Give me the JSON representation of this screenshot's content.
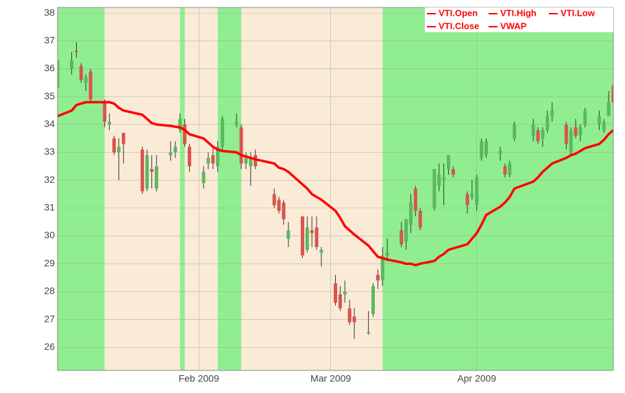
{
  "chart_data": {
    "type": "candlestick",
    "x": [
      "2009-01-02",
      "2009-01-05",
      "2009-01-06",
      "2009-01-07",
      "2009-01-08",
      "2009-01-09",
      "2009-01-12",
      "2009-01-13",
      "2009-01-14",
      "2009-01-15",
      "2009-01-16",
      "2009-01-20",
      "2009-01-21",
      "2009-01-22",
      "2009-01-23",
      "2009-01-26",
      "2009-01-27",
      "2009-01-28",
      "2009-01-29",
      "2009-01-30",
      "2009-02-02",
      "2009-02-03",
      "2009-02-04",
      "2009-02-05",
      "2009-02-06",
      "2009-02-09",
      "2009-02-10",
      "2009-02-11",
      "2009-02-12",
      "2009-02-13",
      "2009-02-17",
      "2009-02-18",
      "2009-02-19",
      "2009-02-20",
      "2009-02-23",
      "2009-02-24",
      "2009-02-25",
      "2009-02-26",
      "2009-02-27",
      "2009-03-02",
      "2009-03-03",
      "2009-03-04",
      "2009-03-05",
      "2009-03-06",
      "2009-03-09",
      "2009-03-10",
      "2009-03-11",
      "2009-03-12",
      "2009-03-13",
      "2009-03-16",
      "2009-03-17",
      "2009-03-18",
      "2009-03-19",
      "2009-03-20",
      "2009-03-23",
      "2009-03-24",
      "2009-03-25",
      "2009-03-26",
      "2009-03-27",
      "2009-03-30",
      "2009-03-31",
      "2009-04-01",
      "2009-04-02",
      "2009-04-03",
      "2009-04-06",
      "2009-04-07",
      "2009-04-08",
      "2009-04-09",
      "2009-04-13",
      "2009-04-14",
      "2009-04-15",
      "2009-04-16",
      "2009-04-17",
      "2009-04-20",
      "2009-04-21",
      "2009-04-22",
      "2009-04-23",
      "2009-04-24",
      "2009-04-27",
      "2009-04-28",
      "2009-04-29",
      "2009-04-30"
    ],
    "series": [
      {
        "name": "VTI.Open",
        "color": "#ff0000",
        "values": [
          35.3,
          36.0,
          36.65,
          36.1,
          35.5,
          35.9,
          34.8,
          34.0,
          33.5,
          33.0,
          33.7,
          33.1,
          31.7,
          32.4,
          31.7,
          32.9,
          33.0,
          33.8,
          34.0,
          33.2,
          31.9,
          32.6,
          32.9,
          32.5,
          33.2,
          34.0,
          33.9,
          32.6,
          32.5,
          32.9,
          31.5,
          31.3,
          31.2,
          29.9,
          30.7,
          29.5,
          30.2,
          30.3,
          29.4,
          28.3,
          27.9,
          27.9,
          27.4,
          27.1,
          26.5,
          27.2,
          28.6,
          28.4,
          29.3,
          30.2,
          29.8,
          30.4,
          31.7,
          30.9,
          31.0,
          31.8,
          32.0,
          32.4,
          32.4,
          31.5,
          31.4,
          31.1,
          32.8,
          32.9,
          32.95,
          32.5,
          32.2,
          33.5,
          33.6,
          33.8,
          33.5,
          33.8,
          34.3,
          34.0,
          33.0,
          33.9,
          33.6,
          34.0,
          34.0,
          33.8,
          34.3,
          35.4
        ]
      },
      {
        "name": "VTI.High",
        "color": "#ff0000",
        "values": [
          36.5,
          36.6,
          36.95,
          36.2,
          35.8,
          36.0,
          34.9,
          34.4,
          33.6,
          33.5,
          33.7,
          33.2,
          33.1,
          32.9,
          32.9,
          33.4,
          33.4,
          34.4,
          34.2,
          33.3,
          32.5,
          33.0,
          33.2,
          33.4,
          34.3,
          34.4,
          34.0,
          33.0,
          33.0,
          33.1,
          31.7,
          31.4,
          31.3,
          30.5,
          30.7,
          30.7,
          30.7,
          30.7,
          29.6,
          28.6,
          28.2,
          28.4,
          27.7,
          27.4,
          27.3,
          28.3,
          28.8,
          29.6,
          29.9,
          30.5,
          30.6,
          31.5,
          31.8,
          31.0,
          32.4,
          32.6,
          32.6,
          32.9,
          32.5,
          31.6,
          32.0,
          32.2,
          33.5,
          33.5,
          33.2,
          32.6,
          32.7,
          34.1,
          34.2,
          33.9,
          33.9,
          34.5,
          34.8,
          34.1,
          33.9,
          34.2,
          34.0,
          34.6,
          34.5,
          34.2,
          35.2,
          35.6
        ]
      },
      {
        "name": "VTI.Low",
        "color": "#ff0000",
        "values": [
          35.1,
          35.8,
          36.4,
          35.5,
          35.2,
          34.8,
          33.9,
          33.8,
          32.9,
          32.0,
          32.6,
          31.5,
          31.6,
          31.7,
          31.6,
          32.7,
          32.8,
          33.7,
          33.2,
          32.3,
          31.7,
          32.4,
          32.4,
          32.3,
          33.1,
          33.9,
          32.4,
          32.4,
          31.8,
          32.4,
          31.0,
          30.8,
          30.4,
          29.6,
          29.2,
          29.4,
          29.6,
          29.5,
          28.9,
          27.5,
          27.3,
          27.6,
          26.8,
          26.3,
          26.45,
          27.1,
          28.1,
          28.2,
          29.1,
          29.6,
          29.5,
          30.1,
          30.7,
          30.2,
          30.9,
          31.6,
          31.1,
          32.2,
          32.1,
          30.8,
          31.3,
          30.9,
          32.7,
          32.8,
          32.7,
          32.1,
          32.1,
          33.4,
          33.4,
          33.3,
          33.2,
          33.7,
          34.1,
          33.1,
          32.9,
          33.5,
          33.4,
          33.9,
          33.8,
          33.7,
          34.3,
          34.7
        ]
      },
      {
        "name": "VTI.Close",
        "color": "#ff0000",
        "values": [
          36.3,
          36.3,
          36.6,
          35.6,
          35.7,
          34.9,
          34.1,
          34.1,
          33.0,
          33.2,
          33.3,
          31.6,
          32.9,
          32.3,
          32.5,
          33.0,
          33.2,
          34.2,
          33.3,
          32.5,
          32.3,
          32.8,
          32.6,
          33.2,
          34.2,
          34.1,
          32.6,
          32.9,
          32.8,
          32.5,
          31.1,
          30.9,
          30.6,
          30.2,
          29.3,
          30.3,
          30.1,
          29.6,
          29.5,
          27.6,
          27.4,
          28.0,
          26.9,
          26.9,
          26.55,
          28.2,
          28.4,
          29.3,
          29.4,
          29.7,
          30.6,
          31.2,
          30.9,
          30.3,
          32.4,
          32.2,
          32.1,
          32.9,
          32.2,
          31.1,
          31.5,
          32.1,
          33.4,
          33.4,
          33.05,
          32.2,
          32.6,
          34.0,
          34.0,
          33.4,
          33.8,
          34.3,
          34.5,
          33.3,
          33.8,
          33.6,
          33.9,
          34.5,
          34.3,
          34.1,
          34.8,
          34.8
        ]
      },
      {
        "name": "VWAP",
        "color": "#ff0000",
        "values": [
          34.3,
          34.5,
          34.7,
          34.75,
          34.8,
          34.8,
          34.8,
          34.8,
          34.75,
          34.6,
          34.5,
          34.35,
          34.2,
          34.05,
          34.0,
          33.95,
          33.92,
          33.9,
          33.8,
          33.65,
          33.5,
          33.35,
          33.2,
          33.1,
          33.05,
          33.0,
          32.9,
          32.85,
          32.8,
          32.75,
          32.6,
          32.45,
          32.4,
          32.3,
          31.85,
          31.7,
          31.5,
          31.4,
          31.3,
          30.9,
          30.65,
          30.35,
          30.2,
          30.05,
          29.65,
          29.45,
          29.25,
          29.2,
          29.15,
          29.05,
          29.0,
          29.0,
          28.95,
          29.0,
          29.1,
          29.25,
          29.35,
          29.5,
          29.55,
          29.7,
          29.9,
          30.1,
          30.4,
          30.75,
          31.05,
          31.2,
          31.4,
          31.7,
          31.95,
          32.1,
          32.3,
          32.45,
          32.6,
          32.8,
          32.9,
          32.95,
          33.05,
          33.15,
          33.3,
          33.45,
          33.65,
          33.8
        ]
      }
    ],
    "up_color": "#5cb85c",
    "down_color": "#d9534f",
    "regions": [
      {
        "start": "2009-01-02",
        "end": "2009-01-12",
        "color": "#90ee90"
      },
      {
        "start": "2009-01-12",
        "end": "2009-01-28",
        "color": "#faebd7"
      },
      {
        "start": "2009-01-28",
        "end": "2009-01-29",
        "color": "#90ee90"
      },
      {
        "start": "2009-01-29",
        "end": "2009-02-05",
        "color": "#faebd7"
      },
      {
        "start": "2009-02-05",
        "end": "2009-02-10",
        "color": "#90ee90"
      },
      {
        "start": "2009-02-10",
        "end": "2009-03-12",
        "color": "#faebd7"
      },
      {
        "start": "2009-03-12",
        "end": "2009-04-30",
        "color": "#90ee90"
      }
    ],
    "xlim": [
      "2009-01-02",
      "2009-04-30"
    ],
    "xticks": [
      {
        "value": "2009-02-01",
        "label": "Feb 2009"
      },
      {
        "value": "2009-03-01",
        "label": "Mar 2009"
      },
      {
        "value": "2009-04-01",
        "label": "Apr 2009"
      }
    ],
    "ylim": [
      25.17,
      38.2
    ],
    "yticks": [
      26,
      27,
      28,
      29,
      30,
      31,
      32,
      33,
      34,
      35,
      36,
      37,
      38
    ],
    "grid": true,
    "legend": "top-right"
  }
}
